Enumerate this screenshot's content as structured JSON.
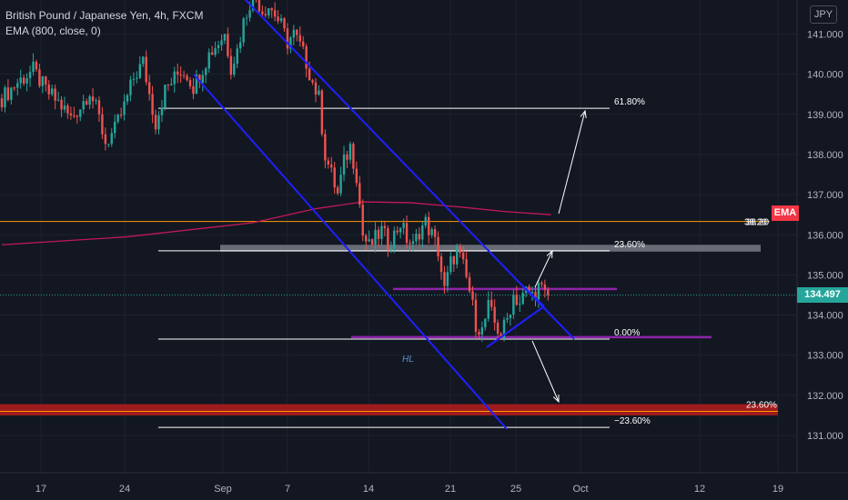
{
  "header": {
    "symbol_title": "British Pound / Japanese Yen, 4h, FXCM",
    "indicator": "EMA (800, close, 0)"
  },
  "currency_badge": "JPY",
  "price_tag": {
    "value": "134.497",
    "color": "#26a69a"
  },
  "ema_tag": {
    "label": "EMA",
    "value": "38.20",
    "color": "#f23645"
  },
  "annotation_hl": "HL",
  "colors": {
    "background": "#131722",
    "up": "#26a69a",
    "down": "#ef5350",
    "channel": "#1f1fff",
    "ema": "#c2185b",
    "fib_line": "#ffffff",
    "purple": "#8e24aa",
    "orange": "#ff9800",
    "support_zone": "#b71c1c"
  },
  "chart_data": {
    "type": "candlestick",
    "ylim": [
      130.5,
      142.0
    ],
    "y_ticks": [
      "141.000",
      "140.000",
      "139.000",
      "138.000",
      "137.000",
      "136.000",
      "135.000",
      "134.000",
      "133.000",
      "132.000",
      "131.000"
    ],
    "x_ticks": [
      "17",
      "24",
      "Sep",
      "7",
      "14",
      "21",
      "25",
      "Oct",
      "12",
      "19"
    ],
    "price_path": [
      [
        0,
        139.4
      ],
      [
        5,
        139.8
      ],
      [
        10,
        140.1
      ],
      [
        14,
        139.6
      ],
      [
        18,
        139.3
      ],
      [
        22,
        138.9
      ],
      [
        25,
        139.2
      ],
      [
        28,
        139.6
      ],
      [
        31,
        138.9
      ],
      [
        33,
        138.3
      ],
      [
        36,
        138.6
      ],
      [
        39,
        139.2
      ],
      [
        42,
        139.9
      ],
      [
        45,
        140.3
      ],
      [
        47,
        139.5
      ],
      [
        49,
        138.8
      ],
      [
        52,
        139.6
      ],
      [
        55,
        139.9
      ],
      [
        57,
        140.1
      ],
      [
        59,
        140.0
      ],
      [
        61,
        139.7
      ],
      [
        63,
        140.0
      ],
      [
        66,
        140.5
      ],
      [
        69,
        140.8
      ],
      [
        71,
        141.0
      ],
      [
        73,
        140.2
      ],
      [
        75,
        140.6
      ],
      [
        77,
        141.3
      ],
      [
        79,
        141.8
      ],
      [
        81,
        141.9
      ],
      [
        83,
        141.6
      ],
      [
        85,
        141.7
      ],
      [
        87,
        141.5
      ],
      [
        89,
        141.2
      ],
      [
        91,
        140.8
      ],
      [
        93,
        141.0
      ],
      [
        95,
        140.7
      ],
      [
        97,
        140.3
      ],
      [
        99,
        139.8
      ],
      [
        101,
        139.4
      ],
      [
        103,
        138.0
      ],
      [
        105,
        137.5
      ],
      [
        107,
        137.0
      ],
      [
        109,
        137.8
      ],
      [
        111,
        138.2
      ],
      [
        113,
        137.5
      ],
      [
        115,
        136.0
      ],
      [
        117,
        135.7
      ],
      [
        119,
        135.9
      ],
      [
        121,
        136.1
      ],
      [
        123,
        135.8
      ],
      [
        125,
        136.0
      ],
      [
        127,
        136.3
      ],
      [
        129,
        135.9
      ],
      [
        131,
        135.7
      ],
      [
        133,
        136.1
      ],
      [
        135,
        136.3
      ],
      [
        137,
        136.0
      ],
      [
        139,
        135.6
      ],
      [
        141,
        134.6
      ],
      [
        143,
        135.3
      ],
      [
        145,
        135.6
      ],
      [
        147,
        135.2
      ],
      [
        149,
        134.6
      ],
      [
        151,
        133.8
      ],
      [
        153,
        133.6
      ],
      [
        155,
        134.2
      ],
      [
        157,
        133.8
      ],
      [
        159,
        133.5
      ],
      [
        161,
        133.9
      ],
      [
        163,
        134.5
      ],
      [
        165,
        134.3
      ],
      [
        167,
        134.6
      ],
      [
        169,
        134.5
      ],
      [
        171,
        134.7
      ],
      [
        173,
        134.5
      ],
      [
        174,
        134.497
      ]
    ],
    "ema_line": [
      [
        0,
        135.75
      ],
      [
        40,
        135.95
      ],
      [
        80,
        136.3
      ],
      [
        100,
        136.65
      ],
      [
        115,
        136.82
      ],
      [
        130,
        136.8
      ],
      [
        145,
        136.7
      ],
      [
        160,
        136.58
      ],
      [
        175,
        136.5
      ]
    ],
    "levels": [
      {
        "label": "61.80%",
        "price": 139.15,
        "color": "#ffffff"
      },
      {
        "label": "23.60%",
        "price": 135.6,
        "color": "#ffffff"
      },
      {
        "label": "0.00%",
        "price": 133.4,
        "color": "#ffffff"
      },
      {
        "label": "−23.60%",
        "price": 131.2,
        "color": "#ffffff"
      },
      {
        "label": "38.20",
        "price": 136.33,
        "color": "#ff9800"
      },
      {
        "label": "23.60%",
        "price": 131.6,
        "color": "#ff9800"
      }
    ]
  }
}
